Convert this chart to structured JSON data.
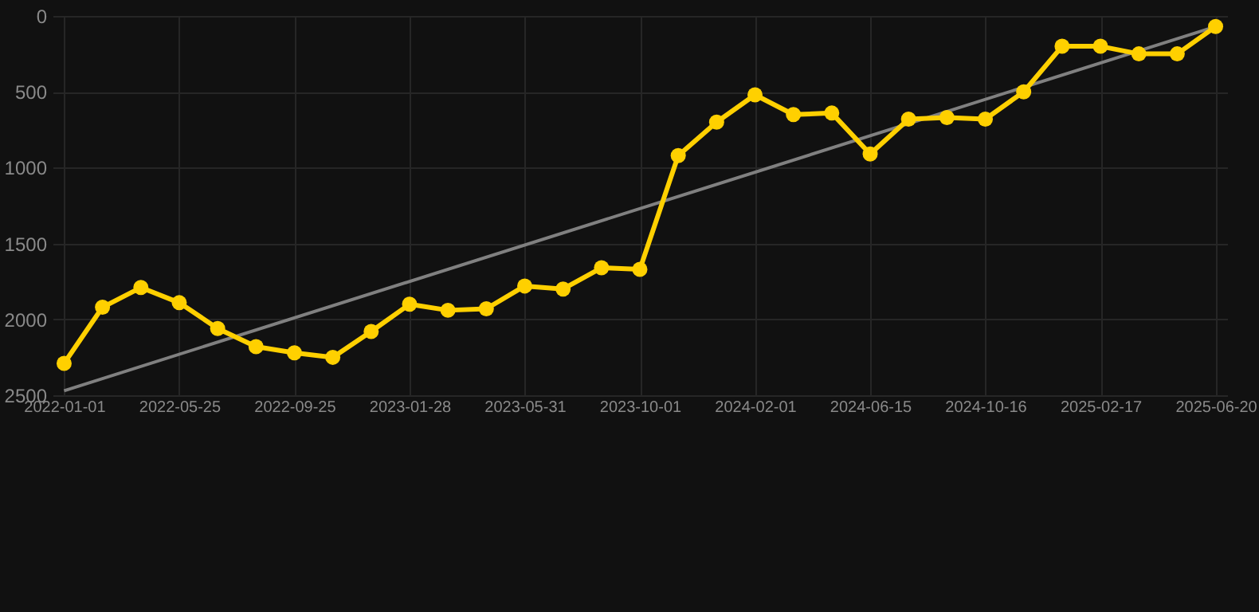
{
  "chart_data": {
    "type": "line",
    "categories": [
      "2022-01-01",
      null,
      null,
      "2022-05-25",
      null,
      null,
      "2022-09-25",
      null,
      null,
      "2023-01-28",
      null,
      null,
      "2023-05-31",
      null,
      null,
      "2023-10-01",
      null,
      null,
      "2024-02-01",
      null,
      null,
      "2024-06-15",
      null,
      null,
      "2024-10-16",
      null,
      null,
      "2025-02-17",
      null,
      null,
      "2025-06-20"
    ],
    "series": [
      {
        "color": "#ffd000",
        "values": [
          2290,
          1920,
          1790,
          1890,
          2060,
          2180,
          2220,
          2250,
          2080,
          1900,
          1940,
          1930,
          1780,
          1800,
          1660,
          1670,
          920,
          700,
          520,
          650,
          640,
          910,
          680,
          670,
          680,
          500,
          200,
          200,
          250,
          250,
          70
        ]
      },
      {
        "type": "line",
        "color": "#808080",
        "values": [
          2470,
          null,
          null,
          null,
          null,
          null,
          null,
          null,
          null,
          null,
          null,
          null,
          null,
          null,
          null,
          null,
          null,
          null,
          null,
          null,
          null,
          null,
          null,
          null,
          null,
          null,
          null,
          null,
          null,
          null,
          70
        ],
        "marker": "none"
      }
    ],
    "ylim": [
      2500,
      0
    ],
    "yticks": [
      0,
      500,
      1000,
      1500,
      2000,
      2500
    ],
    "grid": true,
    "marker": "circle",
    "line_style": "solid",
    "legend": false
  }
}
